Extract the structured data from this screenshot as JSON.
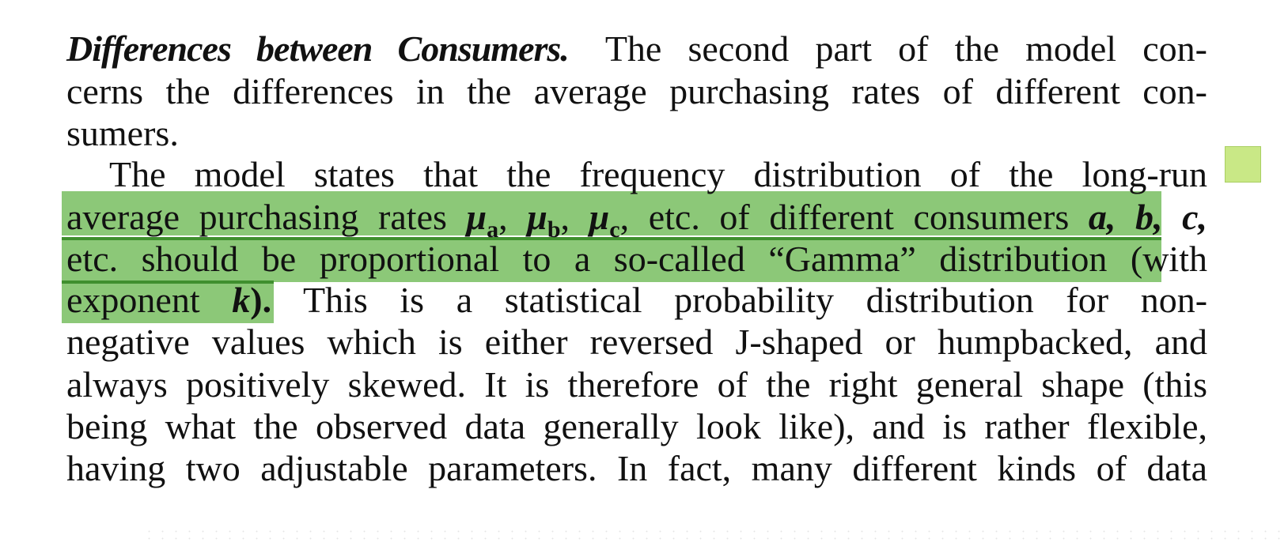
{
  "document": {
    "heading": "Differences between Consumers.",
    "line1_rest": "The second part of the model con-",
    "line2": "cerns the differences in the average purchasing rates of different con-",
    "line3": "sumers.",
    "line4": "The model states that the frequency distribution of the long-run",
    "line5_a": "average purchasing rates",
    "mu_a_symbol": "μ",
    "mu_a_sub": "a",
    "mu_b_symbol": "μ",
    "mu_b_sub": "b",
    "mu_c_symbol": "μ",
    "mu_c_sub": "c",
    "line5_b": "etc. of different consumers",
    "line5_vars": "a, b, c,",
    "line6": "etc. should be proportional to a so-called “Gamma” distribution (with",
    "line7_a": "exponent",
    "line7_k": "k",
    "line7_b": ").",
    "line7_c": "This is a statistical probability distribution for non-",
    "line8": "negative values which is either reversed J-shaped or humpbacked, and",
    "line9": "always positively skewed. It is therefore of the right general shape (this",
    "line10": "being what the observed data generally look like), and is rather flexible,",
    "line11": "having two adjustable parameters. In fact, many different kinds of data"
  },
  "colors": {
    "highlight": "#6cb952",
    "highlight_rule": "#3f8f2e",
    "note_marker": "#c9e886"
  },
  "annotation": {
    "type": "highlight",
    "note_icon": "sticky-note-icon"
  }
}
